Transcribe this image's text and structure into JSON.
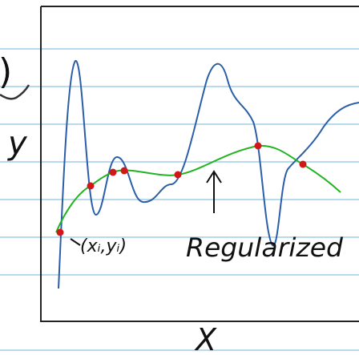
{
  "labels": {
    "corner": ")",
    "y_axis": "y",
    "x_axis": "X",
    "point": "(xᵢ,yᵢ)",
    "curve": "Regularized"
  }
}
